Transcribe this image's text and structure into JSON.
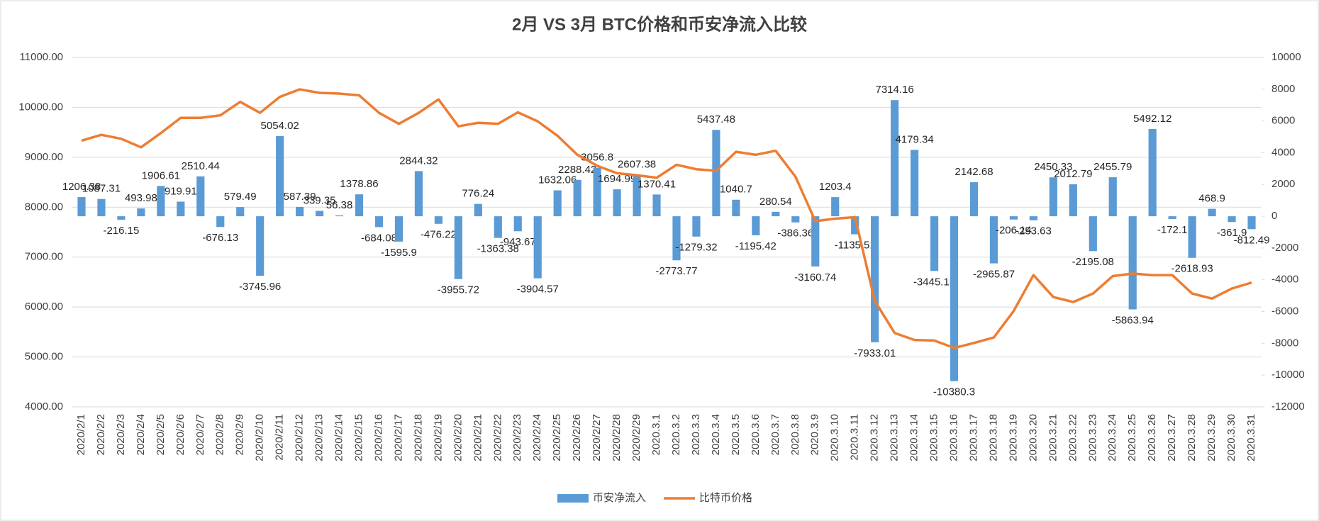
{
  "chart_data": {
    "type": "bar_line",
    "title": "2月 VS 3月 BTC价格和币安净流入比较",
    "categories": [
      "2020/2/1",
      "2020/2/2",
      "2020/2/3",
      "2020/2/4",
      "2020/2/5",
      "2020/2/6",
      "2020/2/7",
      "2020/2/8",
      "2020/2/9",
      "2020/2/10",
      "2020/2/11",
      "2020/2/12",
      "2020/2/13",
      "2020/2/14",
      "2020/2/15",
      "2020/2/16",
      "2020/2/17",
      "2020/2/18",
      "2020/2/19",
      "2020/2/20",
      "2020/2/21",
      "2020/2/22",
      "2020/2/23",
      "2020/2/24",
      "2020/2/25",
      "2020/2/26",
      "2020/2/27",
      "2020/2/28",
      "2020/2/29",
      "2020.3.1",
      "2020.3.2",
      "2020.3.3",
      "2020.3.4",
      "2020.3.5",
      "2020.3.6",
      "2020.3.7",
      "2020.3.8",
      "2020.3.9",
      "2020.3.10",
      "2020.3.11",
      "2020.3.12",
      "2020.3.13",
      "2020.3.14",
      "2020.3.15",
      "2020.3.16",
      "2020.3.17",
      "2020.3.18",
      "2020.3.19",
      "2020.3.20",
      "2020.3.21",
      "2020.3.22",
      "2020.3.23",
      "2020.3.24",
      "2020.3.25",
      "2020.3.26",
      "2020.3.27",
      "2020.3.28",
      "2020.3.29",
      "2020.3.30",
      "2020.3.31"
    ],
    "series": [
      {
        "name": "币安净流入",
        "type": "bar",
        "axis": "y2",
        "color": "#5b9bd5",
        "values": [
          1206.38,
          1087.31,
          -216.15,
          493.98,
          1906.61,
          919.91,
          2510.44,
          -676.13,
          579.49,
          -3745.96,
          5054.02,
          587.39,
          339.35,
          56.38,
          1378.86,
          -684.08,
          -1595.9,
          2844.32,
          -476.22,
          -3955.72,
          776.24,
          -1363.38,
          -943.67,
          -3904.57,
          1632.06,
          2288.42,
          3056.8,
          1694.99,
          2607.38,
          1370.41,
          -2773.77,
          -1279.32,
          5437.48,
          1040.7,
          -1195.42,
          280.54,
          -386.36,
          -3160.74,
          1203.4,
          -1135.51,
          -7933.01,
          7314.16,
          4179.34,
          -3445.15,
          -10380.3,
          2142.68,
          -2965.87,
          -206.14,
          -253.63,
          2450.33,
          2012.79,
          -2195.08,
          2455.79,
          -5863.94,
          5492.12,
          -172.1,
          -2618.93,
          468.9,
          -361.9,
          -812.49
        ]
      },
      {
        "name": "比特币价格",
        "type": "line",
        "color": "#ed7d31",
        "values": [
          9333,
          9450,
          9370,
          9200,
          9485,
          9790,
          9790,
          9840,
          10110,
          9890,
          10210,
          10360,
          10290,
          10275,
          10240,
          9890,
          9670,
          9890,
          10160,
          9620,
          9690,
          9670,
          9900,
          9720,
          9430,
          9050,
          8830,
          8680,
          8640,
          8590,
          8850,
          8760,
          8730,
          9110,
          9050,
          9130,
          8610,
          7720,
          7770,
          7800,
          6120,
          5480,
          5340,
          5330,
          5180,
          5280,
          5390,
          5920,
          6640,
          6200,
          6100,
          6270,
          6620,
          6670,
          6640,
          6640,
          6270,
          6170,
          6370,
          6490
        ]
      }
    ],
    "ylim": [
      4000,
      11000
    ],
    "yticks": [
      {
        "value": 4000,
        "label": "4000.00"
      },
      {
        "value": 5000,
        "label": "5000.00"
      },
      {
        "value": 6000,
        "label": "6000.00"
      },
      {
        "value": 7000,
        "label": "7000.00"
      },
      {
        "value": 8000,
        "label": "8000.00"
      },
      {
        "value": 9000,
        "label": "9000.00"
      },
      {
        "value": 10000,
        "label": "10000.00"
      },
      {
        "value": 11000,
        "label": "11000.00"
      }
    ],
    "y2lim": [
      -12000,
      10000
    ],
    "y2ticks": [
      -12000,
      -10000,
      -8000,
      -6000,
      -4000,
      -2000,
      0,
      2000,
      4000,
      6000,
      8000,
      10000
    ],
    "grid": true,
    "legend": "bottom"
  }
}
